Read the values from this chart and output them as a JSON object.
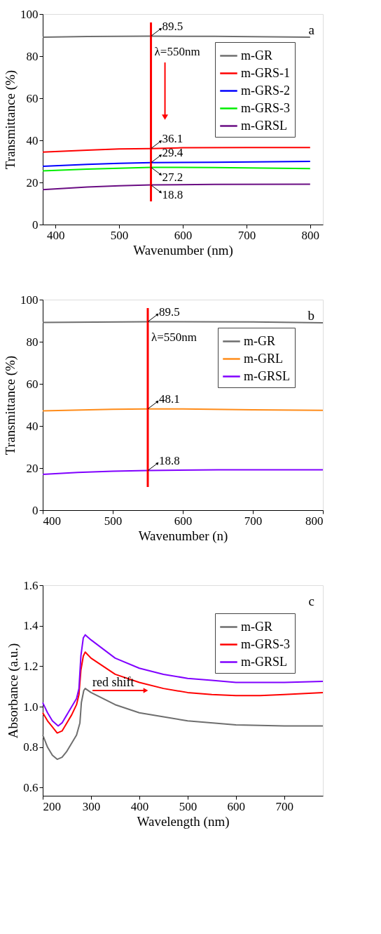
{
  "chart_data": [
    {
      "type": "line",
      "xlabel": "Wavenumber (nm)",
      "ylabel": "Transmittance (%)",
      "xlim": [
        380,
        820
      ],
      "ylim": [
        0,
        100
      ],
      "xticks": [
        400,
        500,
        600,
        700,
        800
      ],
      "yticks": [
        0,
        20,
        40,
        60,
        80,
        100
      ],
      "grid": false,
      "legend": "top right",
      "marker": "none",
      "line_style": "solid",
      "series": [
        {
          "name": "m-GR",
          "color": "#6e6e6e",
          "x": [
            380,
            450,
            550,
            650,
            800
          ],
          "values": [
            89.0,
            89.3,
            89.5,
            89.4,
            89.0
          ]
        },
        {
          "name": "m-GRS-1",
          "color": "#ff0000",
          "x": [
            380,
            450,
            500,
            550,
            600,
            700,
            800
          ],
          "values": [
            34.4,
            35.3,
            35.9,
            36.1,
            36.5,
            36.6,
            36.6
          ]
        },
        {
          "name": "m-GRS-2",
          "color": "#0000ff",
          "x": [
            380,
            450,
            500,
            550,
            650,
            800
          ],
          "values": [
            27.7,
            28.6,
            29.1,
            29.4,
            29.6,
            30.0
          ]
        },
        {
          "name": "m-GRS-3",
          "color": "#00ee00",
          "x": [
            380,
            450,
            550,
            650,
            800
          ],
          "values": [
            25.5,
            26.3,
            27.2,
            27.1,
            26.6
          ]
        },
        {
          "name": "m-GRSL",
          "color": "#6a0d83",
          "x": [
            380,
            450,
            500,
            550,
            650,
            800
          ],
          "values": [
            16.6,
            17.8,
            18.4,
            18.8,
            19.1,
            19.2
          ]
        }
      ],
      "ref_lines": [
        {
          "axis": "x",
          "value": 550,
          "label": "λ=550nm",
          "color": "#ff0000"
        }
      ],
      "annotations": [
        "a",
        {
          "text": "89.5",
          "y": 89.5
        },
        {
          "text": "36.1",
          "y": 36.1
        },
        {
          "text": "29.4",
          "y": 29.4
        },
        {
          "text": "27.2",
          "y": 27.2
        },
        {
          "text": "18.8",
          "y": 18.8
        }
      ]
    },
    {
      "type": "line",
      "xlabel": "Wavenumber (n)",
      "ylabel": "Transmittance (%)",
      "xlim": [
        400,
        800
      ],
      "ylim": [
        0,
        100
      ],
      "xticks": [
        400,
        500,
        600,
        700,
        800
      ],
      "yticks": [
        0,
        20,
        40,
        60,
        80,
        100
      ],
      "grid": false,
      "legend": "top right",
      "marker": "none",
      "line_style": "solid",
      "series": [
        {
          "name": "m-GR",
          "color": "#6e6e6e",
          "x": [
            400,
            550,
            700,
            800
          ],
          "values": [
            89.2,
            89.5,
            89.4,
            89.0
          ]
        },
        {
          "name": "m-GRL",
          "color": "#ff8c1a",
          "x": [
            400,
            500,
            550,
            600,
            700,
            800
          ],
          "values": [
            47.2,
            47.9,
            48.1,
            48.1,
            47.7,
            47.4
          ]
        },
        {
          "name": "m-GRSL",
          "color": "#8000ff",
          "x": [
            400,
            450,
            500,
            550,
            650,
            800
          ],
          "values": [
            17.0,
            17.9,
            18.5,
            18.8,
            19.2,
            19.2
          ]
        }
      ],
      "ref_lines": [
        {
          "axis": "x",
          "value": 550,
          "label": "λ=550nm",
          "color": "#ff0000"
        }
      ],
      "annotations": [
        "b",
        {
          "text": "89.5",
          "y": 89.5
        },
        {
          "text": "48.1",
          "y": 48.1
        },
        {
          "text": "18.8",
          "y": 18.8
        }
      ]
    },
    {
      "type": "line",
      "xlabel": "Wavelength (nm)",
      "ylabel": "Absorbance (a.u.)",
      "xlim": [
        200,
        780
      ],
      "ylim": [
        0.56,
        1.6
      ],
      "xticks": [
        200,
        300,
        400,
        500,
        600,
        700
      ],
      "yticks": [
        {
          "value": 0.6,
          "label": "0.6"
        },
        {
          "value": 0.8,
          "label": "0.8"
        },
        {
          "value": 1.0,
          "label": "1.0"
        },
        {
          "value": 1.2,
          "label": "1.2"
        },
        {
          "value": 1.4,
          "label": "1.4"
        },
        {
          "value": 1.6,
          "label": "1.6"
        }
      ],
      "grid": false,
      "legend": "top right",
      "marker": "none",
      "line_style": "solid",
      "series": [
        {
          "name": "m-GR",
          "color": "#6e6e6e",
          "x": [
            200,
            210,
            220,
            230,
            240,
            250,
            260,
            270,
            277,
            280,
            285,
            288,
            300,
            350,
            400,
            450,
            500,
            600,
            700,
            780
          ],
          "values": [
            0.86,
            0.8,
            0.76,
            0.74,
            0.75,
            0.78,
            0.82,
            0.86,
            0.92,
            1.02,
            1.08,
            1.09,
            1.07,
            1.01,
            0.97,
            0.95,
            0.93,
            0.91,
            0.905,
            0.905
          ]
        },
        {
          "name": "m-GRS-3",
          "color": "#ff0000",
          "x": [
            200,
            210,
            220,
            230,
            240,
            250,
            260,
            270,
            275,
            279,
            284,
            288,
            300,
            350,
            400,
            450,
            500,
            550,
            600,
            650,
            700,
            780
          ],
          "values": [
            0.97,
            0.93,
            0.9,
            0.87,
            0.88,
            0.92,
            0.96,
            1.01,
            1.06,
            1.18,
            1.25,
            1.27,
            1.24,
            1.16,
            1.12,
            1.09,
            1.07,
            1.06,
            1.055,
            1.055,
            1.06,
            1.07
          ]
        },
        {
          "name": "m-GRSL",
          "color": "#8000ff",
          "x": [
            200,
            210,
            220,
            232,
            240,
            250,
            260,
            270,
            275,
            279,
            284,
            288,
            300,
            350,
            400,
            450,
            500,
            550,
            600,
            650,
            700,
            780
          ],
          "values": [
            1.02,
            0.97,
            0.93,
            0.905,
            0.92,
            0.96,
            1.0,
            1.04,
            1.09,
            1.25,
            1.34,
            1.355,
            1.33,
            1.24,
            1.19,
            1.16,
            1.14,
            1.13,
            1.12,
            1.12,
            1.12,
            1.125
          ]
        }
      ],
      "annotations": [
        "c",
        {
          "text": "red shift",
          "x": 303,
          "y": 1.08
        }
      ]
    }
  ]
}
